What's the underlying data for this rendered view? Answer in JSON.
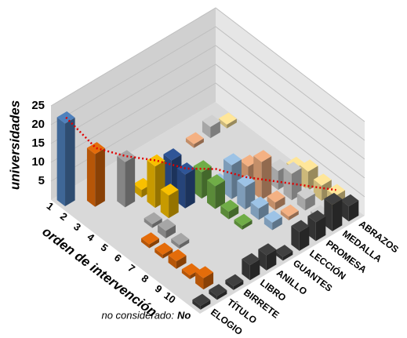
{
  "chart_data": {
    "type": "bar3d",
    "y_axis_label": "universidades",
    "x_axis_label": "orden de intervención",
    "annotation": "no considerado:",
    "categories": [
      "1",
      "2",
      "3",
      "4",
      "5",
      "6",
      "7",
      "8",
      "9",
      "10",
      "No"
    ],
    "elements": [
      "ELOGIO",
      "TÍTULO",
      "BIRRETE",
      "LIBRO",
      "ANILLO",
      "GUANTES",
      "LECCIÓN",
      "PROMESA",
      "MEDALLA",
      "ABRAZOS"
    ],
    "ylim": [
      0,
      25
    ],
    "yticks": [
      5,
      10,
      15,
      20,
      25
    ],
    "grid": true,
    "na_color": "#404040",
    "series": [
      {
        "name": "ELOGIO",
        "color": "#4f81bd",
        "values": [
          22,
          null,
          null,
          null,
          null,
          null,
          null,
          null,
          null,
          null,
          1
        ]
      },
      {
        "name": "TÍTULO",
        "color": "#e46c0a",
        "values": [
          null,
          14,
          null,
          null,
          null,
          1,
          1,
          2,
          1,
          3,
          1
        ]
      },
      {
        "name": "BIRRETE",
        "color": "#a6a6a6",
        "values": [
          null,
          null,
          12,
          null,
          1,
          2,
          1,
          null,
          null,
          null,
          1
        ]
      },
      {
        "name": "LIBRO",
        "color": "#f9c000",
        "values": [
          null,
          null,
          2,
          11,
          6,
          null,
          null,
          null,
          null,
          null,
          4
        ]
      },
      {
        "name": "ANILLO",
        "color": "#2f5597",
        "values": [
          null,
          null,
          null,
          10,
          9,
          null,
          null,
          null,
          null,
          null,
          4
        ]
      },
      {
        "name": "GUANTES",
        "color": "#70ad47",
        "values": [
          null,
          null,
          null,
          null,
          7,
          6,
          2,
          1,
          null,
          null,
          1
        ]
      },
      {
        "name": "LECCIÓN",
        "color": "#9dc3e6",
        "values": [
          null,
          null,
          null,
          null,
          1,
          9,
          6,
          3,
          2,
          null,
          5
        ]
      },
      {
        "name": "PROMESA",
        "color": "#f4b183",
        "values": [
          null,
          1,
          null,
          null,
          null,
          6,
          10,
          2,
          1,
          null,
          5
        ]
      },
      {
        "name": "MEDALLA",
        "color": "#d0d0d0",
        "values": [
          null,
          3,
          null,
          null,
          null,
          null,
          5,
          7,
          3,
          1,
          7
        ]
      },
      {
        "name": "ABRAZOS",
        "color": "#ffe699",
        "values": [
          null,
          1,
          null,
          null,
          null,
          null,
          3,
          5,
          4,
          4,
          4
        ]
      }
    ],
    "line": {
      "color": "#e00000",
      "values": [
        22,
        14,
        12,
        11,
        9,
        9,
        7,
        6,
        5,
        4
      ]
    }
  }
}
